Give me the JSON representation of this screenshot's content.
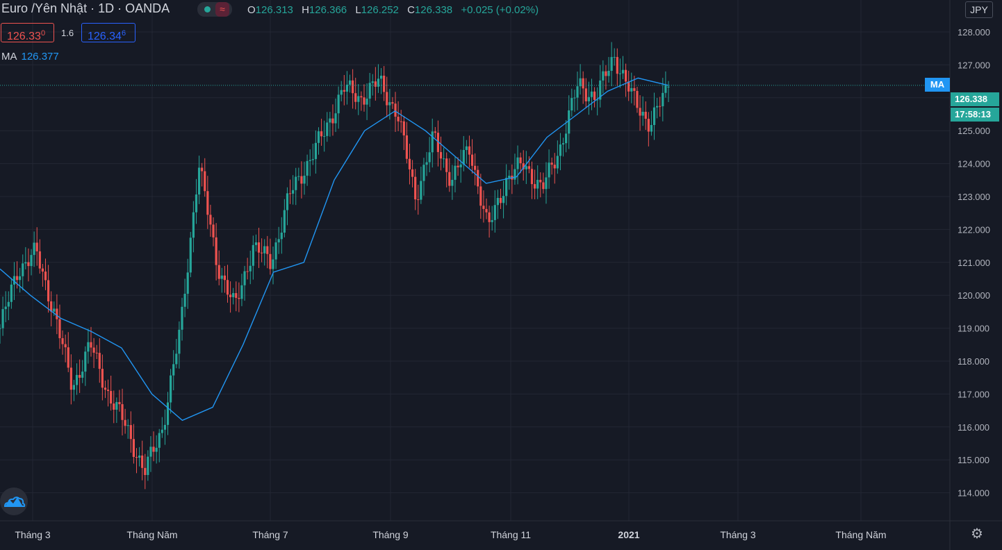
{
  "header": {
    "symbol": "Euro /Yên Nhật",
    "sep1": "·",
    "interval": "1D",
    "sep2": "·",
    "broker": "OANDA",
    "wave_icon": "≈",
    "o_label": "O",
    "o_value": "126.313",
    "h_label": "H",
    "h_value": "126.366",
    "l_label": "L",
    "l_value": "126.252",
    "c_label": "C",
    "c_value": "126.338",
    "change": "+0.025 (+0.02%)"
  },
  "trade": {
    "sell_main": "126.33",
    "sell_small": "0",
    "spread": "1.6",
    "buy_main": "126.34",
    "buy_small": "6"
  },
  "ma_legend": {
    "label": "MA",
    "value": "126.377"
  },
  "currency": "JPY",
  "tags": {
    "ma": "MA",
    "price": "126.338",
    "countdown": "17:58:13"
  },
  "colors": {
    "background": "#161a25",
    "up": "#26a69a",
    "down": "#ef5350",
    "ma_line": "#2196f3",
    "grid": "#232734"
  },
  "icons": {
    "logo": "tradingview-cloud-icon",
    "settings": "gear-icon"
  },
  "chart_data": {
    "type": "candlestick",
    "title": "Euro /Yên Nhật · 1D · OANDA",
    "ylim": [
      113.2,
      128.8
    ],
    "yticks": [
      "114.000",
      "115.000",
      "116.000",
      "117.000",
      "118.000",
      "119.000",
      "120.000",
      "121.000",
      "122.000",
      "123.000",
      "124.000",
      "125.000",
      "126.000",
      "127.000",
      "128.000"
    ],
    "xticks": [
      "Tháng 3",
      "Tháng Năm",
      "Tháng 7",
      "Tháng 9",
      "Tháng 11",
      "2021",
      "Tháng 3",
      "Tháng Năm"
    ],
    "bold_xticks": [
      "2021"
    ],
    "last_price": 126.338,
    "ma_value": 126.377,
    "anchors": [
      119.0,
      120.8,
      121.3,
      119.5,
      117.2,
      118.5,
      117.0,
      116.0,
      114.6,
      116.0,
      119.0,
      124.0,
      121.0,
      119.6,
      121.5,
      121.0,
      123.0,
      124.0,
      125.0,
      126.3,
      126.0,
      126.5,
      125.5,
      123.0,
      124.8,
      123.5,
      124.5,
      122.0,
      123.5,
      124.0,
      123.2,
      124.5,
      126.4,
      126.0,
      127.3,
      126.0,
      125.2,
      126.338
    ],
    "ma_series": [
      120.8,
      120.0,
      119.3,
      118.9,
      118.4,
      117.0,
      116.2,
      116.6,
      118.5,
      120.7,
      121.0,
      123.5,
      125.0,
      125.6,
      125.0,
      124.2,
      123.4,
      123.6,
      124.8,
      125.5,
      126.2,
      126.6,
      126.377
    ]
  }
}
